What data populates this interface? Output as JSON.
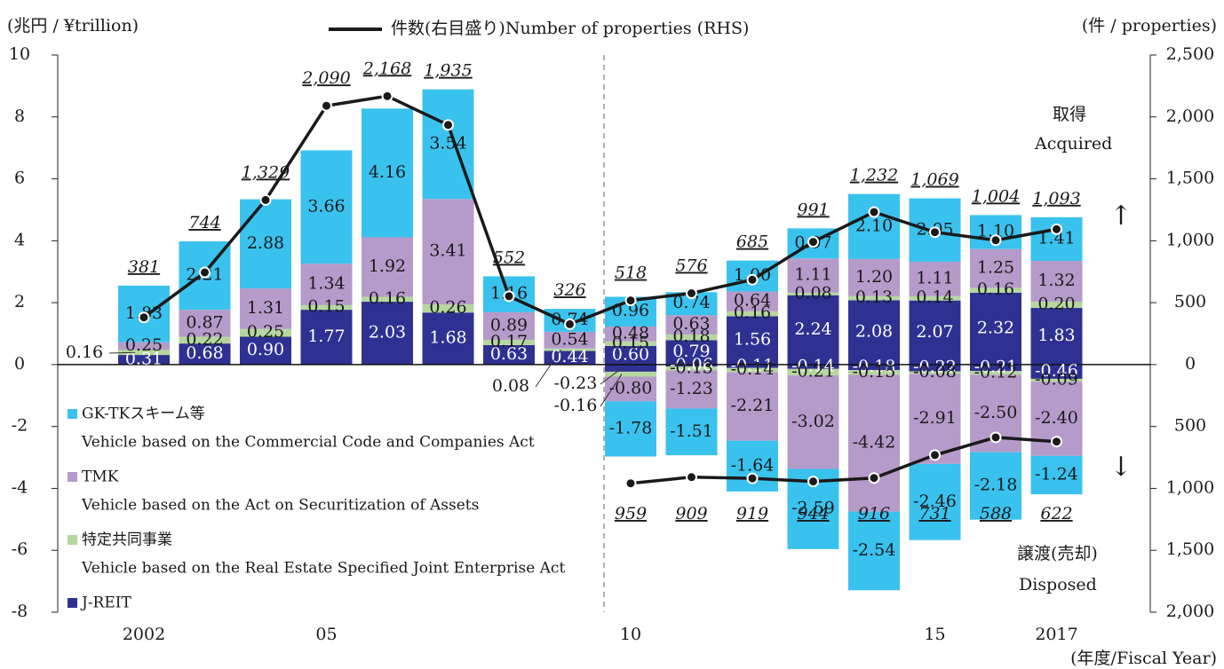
{
  "chart_data": {
    "type": "bar",
    "y_label": "(兆円 / ¥trillion)",
    "y2_label": "(件 / properties)",
    "x_label": "(年度/Fiscal Year)",
    "categories": [
      "2002",
      null,
      null,
      "05",
      null,
      null,
      null,
      null,
      "10",
      null,
      null,
      null,
      null,
      "15",
      null,
      "2017"
    ],
    "ylim": [
      -8,
      10
    ],
    "yticks": [
      -8,
      -6,
      -4,
      -2,
      0,
      2,
      4,
      6,
      8,
      10
    ],
    "y2lim": [
      -2000,
      2500
    ],
    "y2ticks": [
      {
        "value": -2000,
        "label": "2,000"
      },
      {
        "value": -1500,
        "label": "1,500"
      },
      {
        "value": -1000,
        "label": "1,000"
      },
      {
        "value": -500,
        "label": "500"
      },
      0,
      500,
      {
        "value": 1000,
        "label": "1,000"
      },
      {
        "value": 1500,
        "label": "1,500"
      },
      {
        "value": 2000,
        "label": "2,000"
      },
      {
        "value": 2500,
        "label": "2,500"
      }
    ],
    "annotations": {
      "acquired_ja": "取得",
      "acquired_en": "Acquired",
      "acquired_arrow": "↑",
      "disposed_arrow": "↓",
      "disposed_ja": "譲渡(売却)",
      "disposed_en": "Disposed"
    },
    "series": [
      {
        "type": "bar",
        "stack": "acquired",
        "name": "J-REIT",
        "color": "#2e3192",
        "values": [
          0.31,
          0.68,
          0.9,
          1.77,
          2.03,
          1.68,
          0.63,
          0.44,
          0.6,
          0.79,
          1.56,
          2.24,
          2.08,
          2.07,
          2.32,
          1.83
        ],
        "value_labels": [
          "0.31",
          "0.68",
          "0.90",
          "1.77",
          "2.03",
          "1.68",
          "0.63",
          "0.44",
          "0.60",
          "0.79",
          "1.56",
          "2.24",
          "2.08",
          "2.07",
          "2.32",
          "1.83"
        ]
      },
      {
        "type": "bar",
        "stack": "acquired",
        "name": "特定共同事業",
        "description": "Vehicle based on the Real Estate Specified Joint Enterprise Act",
        "color": "#b6d79f",
        "values": [
          0.16,
          0.22,
          0.25,
          0.15,
          0.16,
          0.26,
          0.17,
          0.08,
          0.15,
          0.18,
          0.16,
          0.08,
          0.13,
          0.14,
          0.16,
          0.2
        ],
        "value_labels": [
          "0.16",
          "0.22",
          "0.25",
          "0.15",
          "0.16",
          "0.26",
          "0.17",
          "0.08",
          "0.15",
          "0.18",
          "0.16",
          "0.08",
          "0.13",
          "0.14",
          "0.16",
          "0.20"
        ]
      },
      {
        "type": "bar",
        "stack": "acquired",
        "name": "TMK",
        "description": "Vehicle based on the Act on Securitization of Assets",
        "color": "#b59bc9",
        "values": [
          0.25,
          0.87,
          1.31,
          1.34,
          1.92,
          3.41,
          0.89,
          0.54,
          0.48,
          0.63,
          0.64,
          1.11,
          1.2,
          1.11,
          1.25,
          1.32
        ],
        "value_labels": [
          "0.25",
          "0.87",
          "1.31",
          "1.34",
          "1.92",
          "3.41",
          "0.89",
          "0.54",
          "0.48",
          "0.63",
          "0.64",
          "1.11",
          "1.20",
          "1.11",
          "1.25",
          "1.32"
        ]
      },
      {
        "type": "bar",
        "stack": "acquired",
        "name": "GK-TKスキーム等",
        "description": "Vehicle based on the Commercial Code and Companies Act",
        "color": "#3ac2ee",
        "values": [
          1.83,
          2.21,
          2.88,
          3.66,
          4.16,
          3.54,
          1.16,
          0.74,
          0.96,
          0.74,
          1.0,
          0.97,
          2.1,
          2.05,
          1.1,
          1.41
        ],
        "value_labels": [
          "1.83",
          "2.21",
          "2.88",
          "3.66",
          "4.16",
          "3.54",
          "1.16",
          "0.74",
          "0.96",
          "0.74",
          "1.00",
          "0.97",
          "2.10",
          "2.05",
          "1.10",
          "1.41"
        ]
      },
      {
        "type": "bar",
        "stack": "disposed",
        "color": "#2e3192",
        "values": [
          null,
          null,
          null,
          null,
          null,
          null,
          null,
          null,
          -0.23,
          -0.06,
          -0.11,
          -0.14,
          -0.18,
          -0.22,
          -0.21,
          -0.46
        ],
        "value_labels": [
          null,
          null,
          null,
          null,
          null,
          null,
          null,
          null,
          "-0.23",
          "-0.06",
          "-0.11",
          "-0.14",
          "-0.18",
          "-0.22",
          "-0.21",
          "-0.46"
        ]
      },
      {
        "type": "bar",
        "stack": "disposed",
        "color": "#b6d79f",
        "values": [
          null,
          null,
          null,
          null,
          null,
          null,
          null,
          null,
          -0.16,
          -0.13,
          -0.14,
          -0.21,
          -0.15,
          -0.08,
          -0.12,
          -0.09
        ],
        "value_labels": [
          null,
          null,
          null,
          null,
          null,
          null,
          null,
          null,
          "-0.16",
          "-0.13",
          "-0.14",
          "-0.21",
          "-0.15",
          "-0.08",
          "-0.12",
          "-0.09"
        ]
      },
      {
        "type": "bar",
        "stack": "disposed",
        "color": "#b59bc9",
        "values": [
          null,
          null,
          null,
          null,
          null,
          null,
          null,
          null,
          -0.8,
          -1.23,
          -2.21,
          -3.02,
          -4.42,
          -2.91,
          -2.5,
          -2.4
        ],
        "value_labels": [
          null,
          null,
          null,
          null,
          null,
          null,
          null,
          null,
          "-0.80",
          "-1.23",
          "-2.21",
          "-3.02",
          "-4.42",
          "-2.91",
          "-2.50",
          "-2.40"
        ]
      },
      {
        "type": "bar",
        "stack": "disposed",
        "color": "#3ac2ee",
        "values": [
          null,
          null,
          null,
          null,
          null,
          null,
          null,
          null,
          -1.78,
          -1.51,
          -1.64,
          -2.59,
          -2.54,
          -2.46,
          -2.18,
          -1.24
        ],
        "value_labels": [
          null,
          null,
          null,
          null,
          null,
          null,
          null,
          null,
          "-1.78",
          "-1.51",
          "-1.64",
          "-2.59",
          "-2.54",
          "-2.46",
          "-2.18",
          "-1.24"
        ]
      },
      {
        "type": "line",
        "axis": "y2",
        "name": "件数(右目盛り)Number of properties (RHS)",
        "color": "#1a1a1a",
        "values": [
          381,
          744,
          1329,
          2090,
          2168,
          1935,
          552,
          326,
          518,
          576,
          685,
          991,
          1232,
          1069,
          1004,
          1093
        ],
        "value_labels": [
          "381",
          "744",
          "1,329",
          "2,090",
          "2,168",
          "1,935",
          "552",
          "326",
          "518",
          "576",
          "685",
          "991",
          "1,232",
          "1,069",
          "1,004",
          "1,093"
        ]
      },
      {
        "type": "line",
        "axis": "y2",
        "color": "#1a1a1a",
        "values": [
          null,
          null,
          null,
          null,
          null,
          null,
          null,
          null,
          -959,
          -909,
          -919,
          -944,
          -916,
          -731,
          -588,
          -622
        ],
        "value_labels": [
          null,
          null,
          null,
          null,
          null,
          null,
          null,
          null,
          "959",
          "909",
          "919",
          "944",
          "916",
          "731",
          "588",
          "622"
        ]
      }
    ]
  }
}
